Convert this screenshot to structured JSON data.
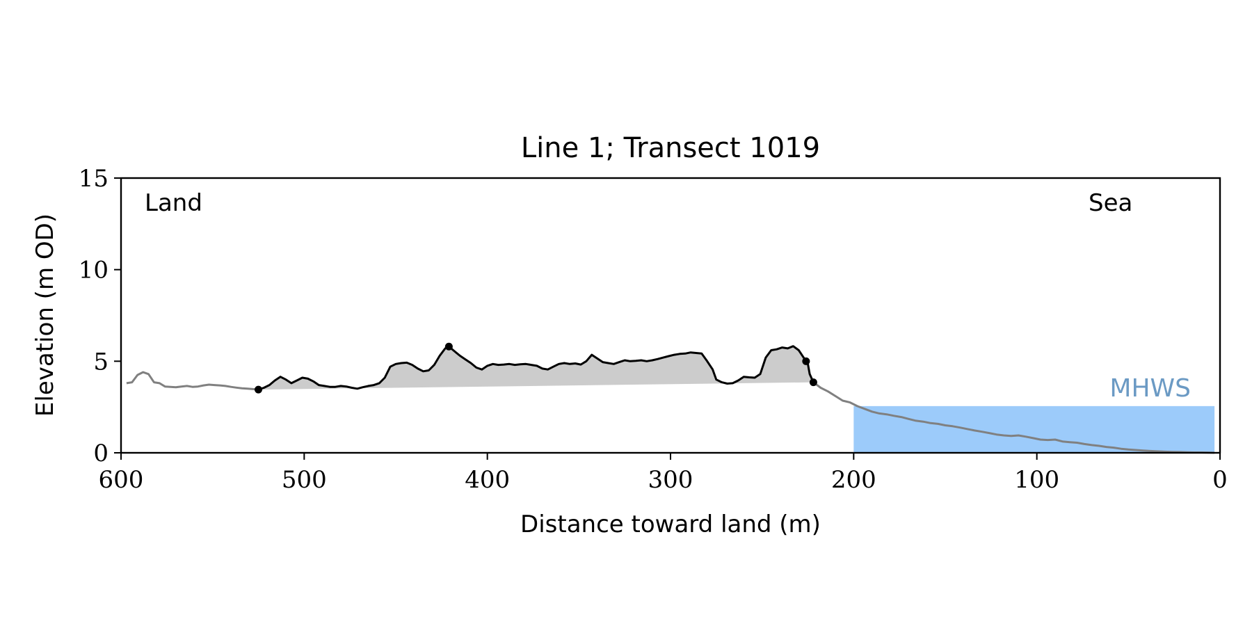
{
  "chart_data": {
    "type": "line",
    "title": "Line 1; Transect 1019",
    "xlabel": "Distance toward land (m)",
    "ylabel": "Elevation (m OD)",
    "xlim": [
      600,
      0
    ],
    "ylim": [
      0,
      15
    ],
    "x_reversed": true,
    "xticks": [
      600,
      500,
      400,
      300,
      200,
      100,
      0
    ],
    "yticks": [
      0,
      5,
      10,
      15
    ],
    "grid": false,
    "annotations": {
      "land": "Land",
      "sea": "Sea",
      "mhws": "MHWS"
    },
    "mhws": {
      "elevation": 2.55,
      "x_from": 200,
      "x_to": 3
    },
    "colors": {
      "profile": "#808080",
      "dune": "#000000",
      "dune_fill": "#cccccc",
      "mhws_fill": "#9ccbfa",
      "mhws_label": "#6b9ac4"
    },
    "profile": {
      "x": [
        597,
        594,
        591,
        588,
        585,
        582,
        579,
        576,
        573,
        570,
        567,
        564,
        561,
        558,
        555,
        552,
        549,
        546,
        543,
        540,
        537,
        534,
        531,
        528,
        525,
        222,
        218,
        214,
        210,
        206,
        202,
        198,
        194,
        190,
        186,
        182,
        178,
        174,
        170,
        166,
        162,
        158,
        154,
        150,
        146,
        142,
        138,
        134,
        130,
        126,
        122,
        118,
        114,
        110,
        106,
        102,
        98,
        94,
        90,
        86,
        82,
        78,
        74,
        70,
        66,
        62,
        58,
        54,
        50,
        46,
        42,
        38,
        34,
        30,
        26,
        22,
        18,
        14,
        10,
        6,
        3
      ],
      "y": [
        3.8,
        3.85,
        4.25,
        4.4,
        4.3,
        3.85,
        3.8,
        3.62,
        3.6,
        3.58,
        3.62,
        3.65,
        3.6,
        3.62,
        3.68,
        3.72,
        3.7,
        3.68,
        3.65,
        3.6,
        3.56,
        3.52,
        3.5,
        3.48,
        3.45,
        3.85,
        3.55,
        3.35,
        3.1,
        2.85,
        2.75,
        2.55,
        2.4,
        2.25,
        2.15,
        2.1,
        2.02,
        1.95,
        1.85,
        1.75,
        1.7,
        1.62,
        1.58,
        1.5,
        1.45,
        1.38,
        1.3,
        1.22,
        1.15,
        1.08,
        1.0,
        0.95,
        0.92,
        0.95,
        0.88,
        0.8,
        0.72,
        0.7,
        0.72,
        0.62,
        0.58,
        0.55,
        0.48,
        0.42,
        0.38,
        0.32,
        0.28,
        0.22,
        0.18,
        0.15,
        0.12,
        0.1,
        0.08,
        0.06,
        0.05,
        0.04,
        0.03,
        0.02,
        0.02,
        0.01,
        0.0
      ]
    },
    "dune": {
      "x": [
        525,
        522,
        519,
        516,
        513,
        510,
        507,
        504,
        501,
        498,
        495,
        492,
        489,
        486,
        483,
        480,
        477,
        474,
        471,
        468,
        465,
        462,
        459,
        456,
        453,
        450,
        447,
        444,
        441,
        438,
        435,
        432,
        429,
        426,
        423,
        421,
        418,
        415,
        412,
        409,
        406,
        403,
        400,
        397,
        394,
        391,
        388,
        385,
        382,
        379,
        376,
        373,
        370,
        367,
        364,
        361,
        358,
        355,
        352,
        349,
        346,
        343,
        340,
        337,
        334,
        331,
        328,
        325,
        322,
        319,
        316,
        313,
        310,
        307,
        304,
        301,
        298,
        295,
        292,
        289,
        286,
        283,
        280,
        277,
        275,
        272,
        269,
        266,
        263,
        260,
        257,
        254,
        251,
        248,
        245,
        242,
        239,
        236,
        233,
        230,
        228,
        226,
        225,
        224,
        222
      ],
      "y": [
        3.45,
        3.55,
        3.7,
        3.95,
        4.15,
        4.0,
        3.8,
        3.95,
        4.1,
        4.05,
        3.9,
        3.7,
        3.65,
        3.6,
        3.6,
        3.65,
        3.62,
        3.55,
        3.5,
        3.58,
        3.65,
        3.7,
        3.8,
        4.1,
        4.7,
        4.85,
        4.9,
        4.92,
        4.8,
        4.6,
        4.45,
        4.5,
        4.8,
        5.3,
        5.7,
        5.8,
        5.55,
        5.3,
        5.1,
        4.9,
        4.65,
        4.55,
        4.75,
        4.85,
        4.8,
        4.82,
        4.85,
        4.8,
        4.83,
        4.85,
        4.8,
        4.75,
        4.6,
        4.55,
        4.7,
        4.85,
        4.9,
        4.85,
        4.88,
        4.82,
        5.0,
        5.35,
        5.15,
        4.95,
        4.9,
        4.85,
        4.95,
        5.05,
        5.0,
        5.02,
        5.05,
        5.0,
        5.05,
        5.12,
        5.2,
        5.28,
        5.35,
        5.4,
        5.42,
        5.48,
        5.45,
        5.42,
        5.0,
        4.55,
        4.0,
        3.85,
        3.78,
        3.8,
        3.95,
        4.15,
        4.12,
        4.1,
        4.3,
        5.2,
        5.6,
        5.65,
        5.75,
        5.7,
        5.82,
        5.6,
        5.3,
        5.0,
        4.85,
        4.3,
        3.85
      ]
    },
    "markers": [
      {
        "x": 525,
        "y": 3.45
      },
      {
        "x": 421,
        "y": 5.8
      },
      {
        "x": 226,
        "y": 5.0
      },
      {
        "x": 222,
        "y": 3.85
      }
    ]
  }
}
